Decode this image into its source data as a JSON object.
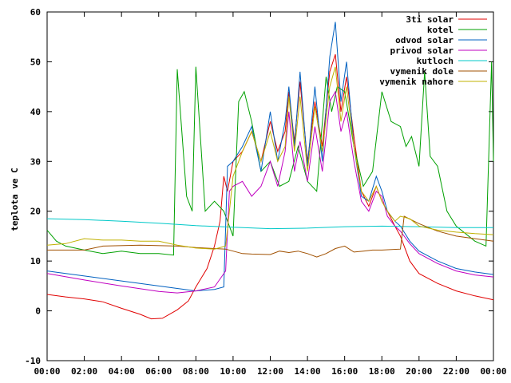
{
  "chart_data": {
    "type": "line",
    "title": "",
    "xlabel": "",
    "ylabel": "teplota ve C",
    "xlim": [
      0,
      24
    ],
    "ylim": [
      -10,
      60
    ],
    "grid": false,
    "legend_position": "top-right",
    "x_ticks": [
      "00:00",
      "02:00",
      "04:00",
      "06:00",
      "08:00",
      "10:00",
      "12:00",
      "14:00",
      "16:00",
      "18:00",
      "20:00",
      "22:00",
      "00:00"
    ],
    "y_ticks": [
      "-10",
      "0",
      "10",
      "20",
      "30",
      "40",
      "50",
      "60"
    ],
    "series": [
      {
        "name": "3ti solar",
        "color": "#e00000",
        "points": [
          [
            0,
            3.3
          ],
          [
            1,
            2.8
          ],
          [
            2,
            2.4
          ],
          [
            3,
            1.8
          ],
          [
            4,
            0.5
          ],
          [
            5,
            -0.7
          ],
          [
            5.6,
            -1.6
          ],
          [
            6.2,
            -1.5
          ],
          [
            7,
            0.2
          ],
          [
            7.6,
            2
          ],
          [
            8,
            4.8
          ],
          [
            8.6,
            8.5
          ],
          [
            9,
            13
          ],
          [
            9.3,
            18
          ],
          [
            9.5,
            27
          ],
          [
            9.7,
            24
          ],
          [
            10,
            30
          ],
          [
            10.5,
            32
          ],
          [
            11,
            36
          ],
          [
            11.5,
            30
          ],
          [
            12,
            38
          ],
          [
            12.4,
            32
          ],
          [
            12.8,
            36
          ],
          [
            13,
            44
          ],
          [
            13.3,
            34
          ],
          [
            13.6,
            46
          ],
          [
            14,
            30
          ],
          [
            14.4,
            42
          ],
          [
            14.8,
            33
          ],
          [
            15.2,
            48
          ],
          [
            15.5,
            51.5
          ],
          [
            15.8,
            40
          ],
          [
            16.1,
            47
          ],
          [
            16.5,
            35
          ],
          [
            16.9,
            24
          ],
          [
            17.3,
            21
          ],
          [
            17.7,
            25
          ],
          [
            18,
            22
          ],
          [
            18.3,
            20
          ],
          [
            18.7,
            17
          ],
          [
            19,
            15
          ],
          [
            19.5,
            10
          ],
          [
            20,
            7.5
          ],
          [
            21,
            5.5
          ],
          [
            22,
            4
          ],
          [
            23,
            3
          ],
          [
            24,
            2.2
          ]
        ]
      },
      {
        "name": "kotel",
        "color": "#00a000",
        "points": [
          [
            0,
            16.2
          ],
          [
            0.5,
            14
          ],
          [
            1,
            13
          ],
          [
            2,
            12.2
          ],
          [
            3,
            11.5
          ],
          [
            4,
            12
          ],
          [
            5,
            11.5
          ],
          [
            6,
            11.5
          ],
          [
            6.8,
            11.2
          ],
          [
            7,
            48.5
          ],
          [
            7.5,
            23
          ],
          [
            7.8,
            20
          ],
          [
            8,
            49
          ],
          [
            8.5,
            20
          ],
          [
            9,
            22
          ],
          [
            9.5,
            20
          ],
          [
            10,
            15
          ],
          [
            10.3,
            42
          ],
          [
            10.6,
            44
          ],
          [
            11,
            38
          ],
          [
            11.5,
            28
          ],
          [
            12,
            30
          ],
          [
            12.5,
            25
          ],
          [
            13,
            26
          ],
          [
            13.5,
            33
          ],
          [
            14,
            26
          ],
          [
            14.5,
            24
          ],
          [
            15,
            47
          ],
          [
            15.3,
            40
          ],
          [
            15.6,
            45
          ],
          [
            16,
            44
          ],
          [
            16.5,
            33
          ],
          [
            17,
            25
          ],
          [
            17.5,
            28
          ],
          [
            18,
            44
          ],
          [
            18.5,
            38
          ],
          [
            19,
            37
          ],
          [
            19.3,
            33
          ],
          [
            19.6,
            35
          ],
          [
            20,
            29
          ],
          [
            20.3,
            48
          ],
          [
            20.6,
            31
          ],
          [
            21,
            29
          ],
          [
            21.5,
            20
          ],
          [
            22,
            17
          ],
          [
            23,
            14
          ],
          [
            23.6,
            13
          ],
          [
            23.9,
            50
          ],
          [
            24,
            30
          ]
        ]
      },
      {
        "name": "odvod solar",
        "color": "#0060c0",
        "points": [
          [
            0,
            8
          ],
          [
            2,
            7
          ],
          [
            4,
            6
          ],
          [
            6,
            5
          ],
          [
            7,
            4.5
          ],
          [
            8,
            4
          ],
          [
            9,
            4.3
          ],
          [
            9.5,
            4.8
          ],
          [
            9.7,
            29
          ],
          [
            10,
            30
          ],
          [
            10.5,
            33
          ],
          [
            11,
            37
          ],
          [
            11.5,
            28
          ],
          [
            12,
            40
          ],
          [
            12.4,
            30
          ],
          [
            12.8,
            38
          ],
          [
            13,
            45
          ],
          [
            13.3,
            33
          ],
          [
            13.6,
            48
          ],
          [
            14,
            29
          ],
          [
            14.4,
            45
          ],
          [
            14.8,
            30
          ],
          [
            15.2,
            51
          ],
          [
            15.5,
            58
          ],
          [
            15.8,
            42
          ],
          [
            16.1,
            50
          ],
          [
            16.5,
            33
          ],
          [
            16.9,
            23
          ],
          [
            17.3,
            22
          ],
          [
            17.7,
            27
          ],
          [
            18,
            24
          ],
          [
            18.3,
            20
          ],
          [
            18.7,
            18
          ],
          [
            19,
            17
          ],
          [
            19.5,
            14
          ],
          [
            20,
            12
          ],
          [
            21,
            10
          ],
          [
            22,
            8.5
          ],
          [
            23,
            7.8
          ],
          [
            24,
            7.3
          ]
        ]
      },
      {
        "name": "privod solar",
        "color": "#c000c0",
        "points": [
          [
            0,
            7.5
          ],
          [
            2,
            6.2
          ],
          [
            4,
            5
          ],
          [
            6,
            3.9
          ],
          [
            7,
            3.6
          ],
          [
            8,
            4
          ],
          [
            9,
            4.8
          ],
          [
            9.6,
            8
          ],
          [
            9.8,
            24
          ],
          [
            10,
            25
          ],
          [
            10.5,
            26
          ],
          [
            11,
            23
          ],
          [
            11.5,
            25
          ],
          [
            12,
            30
          ],
          [
            12.4,
            25
          ],
          [
            12.8,
            32
          ],
          [
            13,
            40
          ],
          [
            13.3,
            28
          ],
          [
            13.6,
            34
          ],
          [
            14,
            26
          ],
          [
            14.4,
            37
          ],
          [
            14.8,
            28
          ],
          [
            15.2,
            42
          ],
          [
            15.5,
            44
          ],
          [
            15.8,
            36
          ],
          [
            16.1,
            40
          ],
          [
            16.5,
            30
          ],
          [
            16.9,
            22
          ],
          [
            17.3,
            20
          ],
          [
            17.7,
            24
          ],
          [
            18,
            23
          ],
          [
            18.3,
            19
          ],
          [
            18.7,
            17
          ],
          [
            19,
            16
          ],
          [
            19.5,
            13.5
          ],
          [
            20,
            11.5
          ],
          [
            21,
            9.5
          ],
          [
            22,
            8
          ],
          [
            23,
            7.2
          ],
          [
            24,
            6.8
          ]
        ]
      },
      {
        "name": "kutloch",
        "color": "#00c8c8",
        "points": [
          [
            0,
            18.5
          ],
          [
            2,
            18.3
          ],
          [
            4,
            18
          ],
          [
            6,
            17.6
          ],
          [
            8,
            17.1
          ],
          [
            10,
            16.8
          ],
          [
            12,
            16.5
          ],
          [
            14,
            16.6
          ],
          [
            16,
            16.9
          ],
          [
            18,
            17
          ],
          [
            20,
            16.9
          ],
          [
            22,
            16.7
          ],
          [
            24,
            16.7
          ]
        ]
      },
      {
        "name": "vymenik dole",
        "color": "#a05000",
        "points": [
          [
            0,
            12.2
          ],
          [
            2,
            12.2
          ],
          [
            3,
            13
          ],
          [
            5,
            13.2
          ],
          [
            7,
            13
          ],
          [
            8,
            12.7
          ],
          [
            9,
            12.5
          ],
          [
            9.6,
            12.4
          ],
          [
            10,
            12
          ],
          [
            10.5,
            11.5
          ],
          [
            11,
            11.4
          ],
          [
            12,
            11.3
          ],
          [
            12.5,
            12
          ],
          [
            13,
            11.7
          ],
          [
            13.5,
            12
          ],
          [
            14,
            11.5
          ],
          [
            14.5,
            10.8
          ],
          [
            15,
            11.5
          ],
          [
            15.5,
            12.5
          ],
          [
            16,
            13
          ],
          [
            16.5,
            11.8
          ],
          [
            17,
            12
          ],
          [
            17.5,
            12.2
          ],
          [
            18,
            12.2
          ],
          [
            19,
            12.4
          ],
          [
            19.2,
            19
          ],
          [
            20,
            17.5
          ],
          [
            21,
            16
          ],
          [
            22,
            15
          ],
          [
            23,
            14.5
          ],
          [
            24,
            14
          ]
        ]
      },
      {
        "name": "vymenik nahore",
        "color": "#c0b000",
        "points": [
          [
            0,
            13.2
          ],
          [
            1,
            13.5
          ],
          [
            2,
            14.5
          ],
          [
            3,
            14.2
          ],
          [
            4,
            14.2
          ],
          [
            5,
            14
          ],
          [
            6,
            14
          ],
          [
            7,
            13.2
          ],
          [
            8,
            12.6
          ],
          [
            9,
            12.4
          ],
          [
            9.6,
            13
          ],
          [
            9.8,
            20
          ],
          [
            10,
            27
          ],
          [
            10.5,
            32
          ],
          [
            11,
            36
          ],
          [
            11.5,
            30
          ],
          [
            12,
            36
          ],
          [
            12.4,
            30
          ],
          [
            12.8,
            33
          ],
          [
            13,
            43
          ],
          [
            13.3,
            32
          ],
          [
            13.6,
            43
          ],
          [
            14,
            28
          ],
          [
            14.4,
            41
          ],
          [
            14.8,
            32
          ],
          [
            15.2,
            45
          ],
          [
            15.5,
            49
          ],
          [
            15.8,
            38
          ],
          [
            16.1,
            45
          ],
          [
            16.5,
            33
          ],
          [
            16.9,
            24
          ],
          [
            17.3,
            22
          ],
          [
            17.7,
            25
          ],
          [
            18,
            22
          ],
          [
            18.3,
            20
          ],
          [
            18.7,
            18
          ],
          [
            19,
            19
          ],
          [
            19.5,
            18.5
          ],
          [
            20,
            17
          ],
          [
            21,
            16.2
          ],
          [
            22,
            15.8
          ],
          [
            23,
            15.5
          ],
          [
            24,
            15.3
          ]
        ]
      }
    ]
  }
}
